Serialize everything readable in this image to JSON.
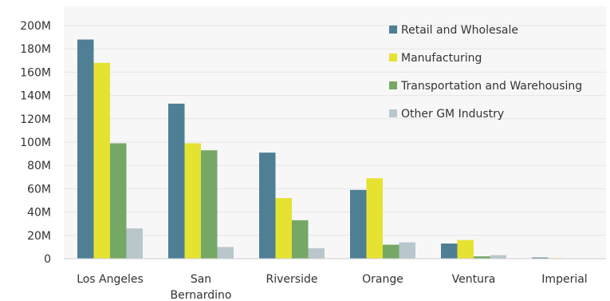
{
  "chart_data": {
    "type": "bar",
    "categories": [
      "Los Angeles",
      "San Bernardino",
      "Riverside",
      "Orange",
      "Ventura",
      "Imperial"
    ],
    "category_lines": [
      [
        "Los Angeles"
      ],
      [
        "San",
        "Bernardino"
      ],
      [
        "Riverside"
      ],
      [
        "Orange"
      ],
      [
        "Ventura"
      ],
      [
        "Imperial"
      ]
    ],
    "series": [
      {
        "name": "Retail and Wholesale",
        "color": "#4f7f94",
        "values": [
          188,
          133,
          91,
          59,
          13,
          1
        ]
      },
      {
        "name": "Manufacturing",
        "color": "#e5e232",
        "values": [
          168,
          99,
          52,
          69,
          16,
          0.5
        ]
      },
      {
        "name": "Transportation and Warehousing",
        "color": "#76a865",
        "values": [
          99,
          93,
          33,
          12,
          2,
          0.3
        ]
      },
      {
        "name": "Other GM Industry",
        "color": "#b9c7cd",
        "values": [
          26,
          10,
          9,
          14,
          3,
          0.3
        ]
      }
    ],
    "ylim": [
      0,
      200
    ],
    "yticks": [
      0,
      20,
      40,
      60,
      80,
      100,
      120,
      140,
      160,
      180,
      200
    ],
    "ytick_labels": [
      "0",
      "20M",
      "40M",
      "60M",
      "80M",
      "100M",
      "120M",
      "140M",
      "160M",
      "180M",
      "200M"
    ],
    "title": "",
    "xlabel": "",
    "ylabel": "",
    "grid": true,
    "legend_position": "top-right"
  }
}
